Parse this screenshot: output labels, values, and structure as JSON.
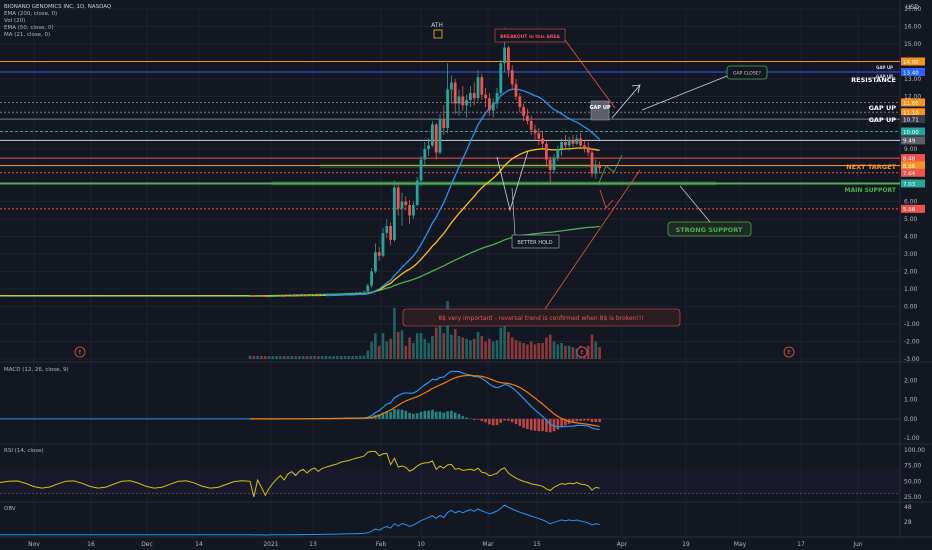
{
  "header": {
    "symbol": "BIONANO GENOMICS INC, 1D, NASDAQ",
    "currency": "USD",
    "indicators": [
      "EMA (200, close, 0)",
      "Vol (20)",
      "EMA (50, close, 0)",
      "MA (21, close, 0)"
    ]
  },
  "panes": {
    "macd_label": "MACD (12, 26, close, 9)",
    "rsi_label": "RSI (14, close)",
    "obv_label": "OBV"
  },
  "annotations": {
    "ath": "ATH",
    "breakout": "BREAKOUT in this AREA",
    "gap_close": "GAP CLOSE?",
    "gap_up_box": "GAP UP",
    "resistance": "RESISTANCE",
    "gap_up_1": "GAP UP",
    "gap_up_2": "GAP UP",
    "next_target": "NEXT TARGET",
    "main_support": "MAIN SUPPORT",
    "strong_support": "STRONG SUPPORT",
    "better_hold": "BETTER HOLD",
    "note": "8$ very important - reversal trend is confirmed when 8$ is broken!!!",
    "gap_up_small_1": "GAP UP",
    "gap_up_small_2": "GAP UP",
    "earnings": "E"
  },
  "price_tags": [
    {
      "label": "14.00",
      "value": 14.0,
      "color": "#f7931a"
    },
    {
      "label": "13.40",
      "value": 13.4,
      "color": "#2962ff"
    },
    {
      "label": "11.66",
      "value": 11.66,
      "color": "#f7931a"
    },
    {
      "label": "11.10",
      "value": 11.1,
      "color": "#f7931a"
    },
    {
      "label": "10.71",
      "value": 10.71,
      "color": "#363a45"
    },
    {
      "label": "10.00",
      "value": 10.0,
      "color": "#26a69a"
    },
    {
      "label": "9.49",
      "value": 9.49,
      "color": "#5d606b"
    },
    {
      "label": "8.48",
      "value": 8.48,
      "color": "#ef5350"
    },
    {
      "label": "8.06",
      "value": 8.06,
      "color": "#f7931a"
    },
    {
      "label": "7.64",
      "value": 7.64,
      "color": "#ef5350"
    },
    {
      "label": "7.03",
      "value": 7.03,
      "color": "#26a69a"
    },
    {
      "label": "5.58",
      "value": 5.58,
      "color": "#ef5350"
    }
  ],
  "chart_data": [
    {
      "type": "candlestick",
      "title": "BIONANO GENOMICS INC, 1D, NASDAQ",
      "ylim": [
        -3,
        17
      ],
      "yticks": [
        17,
        16,
        15,
        14,
        13,
        12,
        11,
        10,
        9,
        8,
        7,
        6,
        5,
        4,
        3,
        2,
        1,
        0,
        -1,
        -2,
        -3
      ],
      "ytick_labels": [
        "17.00",
        "16.00",
        "15.00",
        "14.00",
        "13.00",
        "12.00",
        "11.00",
        "10.00",
        "9.00",
        "8.00",
        "7.00",
        "6.00",
        "5.00",
        "4.00",
        "3.00",
        "2.00",
        "1.00",
        "0.00",
        "-1.00",
        "-2.00",
        "-3.00"
      ],
      "x_labels": [
        "Nov",
        "16",
        "Dec",
        "14",
        "2021",
        "13",
        "Feb",
        "10",
        "Mar",
        "15",
        "Apr",
        "19",
        "May",
        "17",
        "Jun"
      ],
      "ohlc": [
        [
          0.6,
          0.65,
          0.55,
          0.6
        ],
        [
          0.6,
          0.62,
          0.55,
          0.58
        ],
        [
          0.58,
          0.62,
          0.55,
          0.6
        ],
        [
          0.6,
          0.63,
          0.56,
          0.59
        ],
        [
          0.59,
          0.62,
          0.55,
          0.57
        ],
        [
          0.57,
          0.6,
          0.54,
          0.58
        ],
        [
          0.58,
          0.61,
          0.55,
          0.59
        ],
        [
          0.59,
          0.62,
          0.56,
          0.6
        ],
        [
          0.6,
          0.64,
          0.57,
          0.61
        ],
        [
          0.61,
          0.64,
          0.58,
          0.6
        ],
        [
          0.6,
          0.63,
          0.57,
          0.62
        ],
        [
          0.62,
          0.66,
          0.59,
          0.63
        ],
        [
          0.63,
          0.66,
          0.6,
          0.62
        ],
        [
          0.62,
          0.65,
          0.59,
          0.64
        ],
        [
          0.64,
          0.68,
          0.61,
          0.65
        ],
        [
          0.65,
          0.68,
          0.62,
          0.64
        ],
        [
          0.64,
          0.67,
          0.61,
          0.66
        ],
        [
          0.66,
          0.7,
          0.63,
          0.67
        ],
        [
          0.67,
          0.7,
          0.64,
          0.66
        ],
        [
          0.66,
          0.69,
          0.63,
          0.68
        ],
        [
          0.68,
          0.72,
          0.65,
          0.69
        ],
        [
          0.69,
          0.72,
          0.66,
          0.7
        ],
        [
          0.7,
          0.73,
          0.67,
          0.71
        ],
        [
          0.71,
          0.75,
          0.68,
          0.72
        ],
        [
          0.72,
          0.76,
          0.69,
          0.74
        ],
        [
          0.74,
          0.78,
          0.71,
          0.75
        ],
        [
          0.75,
          0.79,
          0.72,
          0.76
        ],
        [
          0.76,
          0.8,
          0.73,
          0.78
        ],
        [
          0.78,
          0.82,
          0.75,
          0.8
        ],
        [
          0.8,
          0.85,
          0.77,
          0.82
        ],
        [
          0.82,
          0.9,
          0.8,
          0.85
        ],
        [
          0.85,
          1.3,
          0.84,
          1.2
        ],
        [
          1.2,
          2.2,
          1.1,
          2.0
        ],
        [
          2.0,
          3.6,
          1.9,
          3.1
        ],
        [
          3.1,
          3.4,
          2.6,
          2.9
        ],
        [
          2.9,
          4.5,
          2.8,
          4.2
        ],
        [
          4.2,
          5.0,
          3.9,
          4.6
        ],
        [
          4.6,
          4.8,
          3.5,
          3.8
        ],
        [
          3.8,
          7.2,
          3.7,
          6.8
        ],
        [
          6.8,
          7.0,
          5.2,
          5.6
        ],
        [
          5.6,
          6.5,
          4.6,
          6.0
        ],
        [
          6.0,
          6.3,
          5.5,
          5.8
        ],
        [
          5.8,
          6.1,
          4.7,
          5.2
        ],
        [
          5.2,
          6.0,
          5.0,
          5.8
        ],
        [
          5.8,
          7.4,
          5.7,
          7.2
        ],
        [
          7.2,
          8.6,
          6.9,
          8.4
        ],
        [
          8.4,
          9.4,
          8.1,
          9.0
        ],
        [
          9.0,
          9.6,
          8.6,
          9.2
        ],
        [
          9.2,
          10.6,
          9.1,
          10.4
        ],
        [
          10.4,
          10.5,
          8.4,
          8.8
        ],
        [
          8.8,
          11.0,
          8.7,
          10.7
        ],
        [
          10.7,
          11.5,
          9.8,
          10.2
        ],
        [
          10.2,
          13.9,
          9.9,
          12.4
        ],
        [
          12.4,
          13.2,
          11.6,
          12.8
        ],
        [
          12.8,
          13.0,
          11.0,
          11.6
        ],
        [
          11.6,
          12.4,
          10.9,
          12.0
        ],
        [
          12.0,
          12.6,
          11.2,
          11.5
        ],
        [
          11.5,
          12.1,
          10.8,
          11.8
        ],
        [
          11.8,
          12.6,
          11.4,
          12.2
        ],
        [
          12.2,
          12.8,
          11.5,
          11.9
        ],
        [
          11.9,
          13.5,
          11.7,
          13.1
        ],
        [
          13.1,
          13.3,
          11.8,
          12.1
        ],
        [
          12.1,
          12.5,
          11.4,
          11.9
        ],
        [
          11.9,
          12.2,
          10.9,
          11.2
        ],
        [
          11.2,
          11.9,
          10.8,
          11.6
        ],
        [
          11.6,
          12.5,
          11.3,
          12.2
        ],
        [
          12.2,
          14.1,
          12.0,
          13.9
        ],
        [
          13.9,
          15.9,
          13.4,
          14.8
        ],
        [
          14.8,
          14.9,
          13.1,
          13.5
        ],
        [
          13.5,
          13.8,
          12.4,
          12.7
        ],
        [
          12.7,
          13.0,
          11.8,
          12.0
        ],
        [
          12.0,
          12.2,
          11.1,
          11.4
        ],
        [
          11.4,
          11.6,
          10.6,
          10.9
        ],
        [
          10.9,
          11.3,
          10.4,
          10.6
        ],
        [
          10.6,
          10.9,
          9.8,
          10.1
        ],
        [
          10.1,
          10.4,
          9.5,
          9.9
        ],
        [
          9.9,
          10.2,
          9.2,
          9.6
        ],
        [
          9.6,
          10.0,
          9.0,
          9.3
        ],
        [
          9.3,
          9.5,
          8.1,
          8.4
        ],
        [
          8.4,
          8.6,
          7.0,
          7.8
        ],
        [
          7.8,
          8.7,
          7.6,
          8.5
        ],
        [
          8.5,
          9.2,
          8.3,
          9.0
        ],
        [
          9.0,
          9.6,
          8.6,
          9.4
        ],
        [
          9.4,
          9.8,
          9.0,
          9.2
        ],
        [
          9.2,
          9.7,
          8.9,
          9.5
        ],
        [
          9.5,
          9.8,
          9.1,
          9.3
        ],
        [
          9.3,
          9.8,
          9.2,
          9.6
        ],
        [
          9.6,
          9.9,
          9.1,
          9.2
        ],
        [
          9.2,
          9.5,
          8.8,
          9.1
        ],
        [
          9.1,
          9.4,
          8.6,
          8.8
        ],
        [
          8.8,
          9.0,
          7.4,
          7.6
        ],
        [
          7.6,
          8.4,
          7.3,
          8.1
        ],
        [
          8.1,
          8.3,
          7.6,
          7.9
        ]
      ],
      "series": [
        {
          "name": "EMA (200, close, 0)",
          "color": "#4caf50",
          "values": [
            0.6,
            0.6,
            0.61,
            0.61,
            0.62,
            0.62,
            0.63,
            0.63,
            0.64,
            0.64,
            0.65,
            0.65,
            0.66,
            0.66,
            0.67,
            0.67,
            0.68,
            0.68,
            0.69,
            0.69,
            0.7,
            0.7,
            0.71,
            0.71,
            0.72,
            0.72,
            0.73,
            0.73,
            0.74,
            0.74,
            0.75,
            0.78,
            0.82,
            0.88,
            0.92,
            0.98,
            1.05,
            1.1,
            1.2,
            1.28,
            1.35,
            1.42,
            1.48,
            1.55,
            1.63,
            1.72,
            1.82,
            1.92,
            2.03,
            2.12,
            2.22,
            2.32,
            2.44,
            2.55,
            2.65,
            2.75,
            2.85,
            2.95,
            3.05,
            3.14,
            3.24,
            3.32,
            3.4,
            3.47,
            3.54,
            3.62,
            3.71,
            3.81,
            3.88,
            3.94,
            3.99,
            4.03,
            4.07,
            4.1,
            4.13,
            4.16,
            4.18,
            4.21,
            4.23,
            4.24,
            4.26,
            4.29,
            4.32,
            4.35,
            4.38,
            4.41,
            4.44,
            4.47,
            4.5,
            4.52,
            4.53,
            4.55,
            4.57
          ]
        },
        {
          "name": "EMA (50, close, 0)",
          "color": "#ffc107",
          "values": [
            0.6,
            0.6,
            0.6,
            0.6,
            0.6,
            0.6,
            0.6,
            0.6,
            0.6,
            0.6,
            0.61,
            0.61,
            0.61,
            0.62,
            0.62,
            0.62,
            0.63,
            0.63,
            0.63,
            0.64,
            0.64,
            0.65,
            0.65,
            0.66,
            0.66,
            0.67,
            0.67,
            0.68,
            0.69,
            0.7,
            0.71,
            0.73,
            0.78,
            0.87,
            0.95,
            1.08,
            1.22,
            1.32,
            1.53,
            1.69,
            1.86,
            2.01,
            2.13,
            2.28,
            2.47,
            2.7,
            2.94,
            3.18,
            3.45,
            3.66,
            3.93,
            4.17,
            4.48,
            4.79,
            5.05,
            5.32,
            5.56,
            5.81,
            6.06,
            6.29,
            6.56,
            6.78,
            6.98,
            7.15,
            7.33,
            7.53,
            7.78,
            8.05,
            8.26,
            8.44,
            8.57,
            8.69,
            8.79,
            8.87,
            8.92,
            8.96,
            8.99,
            9.01,
            9.0,
            8.96,
            8.95,
            8.96,
            8.98,
            9.0,
            9.02,
            9.03,
            9.05,
            9.06,
            9.06,
            9.05,
            8.99,
            8.96,
            8.92
          ]
        },
        {
          "name": "MA (21, close, 0)",
          "color": "#2196f3",
          "values": [
            null,
            null,
            null,
            null,
            null,
            null,
            null,
            null,
            null,
            null,
            null,
            null,
            null,
            null,
            null,
            null,
            null,
            null,
            null,
            null,
            0.62,
            0.63,
            0.64,
            0.64,
            0.65,
            0.66,
            0.66,
            0.67,
            0.68,
            0.69,
            0.7,
            0.73,
            0.79,
            0.9,
            1.0,
            1.17,
            1.35,
            1.49,
            1.78,
            1.99,
            2.23,
            2.45,
            2.66,
            2.89,
            3.19,
            3.54,
            3.93,
            4.33,
            4.77,
            5.1,
            5.53,
            5.93,
            6.44,
            6.99,
            7.48,
            7.96,
            8.44,
            8.92,
            9.43,
            9.89,
            10.39,
            10.72,
            11.06,
            11.31,
            11.52,
            11.73,
            12.06,
            12.2,
            12.35,
            12.41,
            12.42,
            12.39,
            12.32,
            12.24,
            12.15,
            12.04,
            11.97,
            11.83,
            11.65,
            11.43,
            11.26,
            11.14,
            11.01,
            10.86,
            10.74,
            10.62,
            10.53,
            10.4,
            10.25,
            10.12,
            9.94,
            9.74,
            9.55
          ]
        }
      ],
      "volume_scale_note": "",
      "levels": [
        14.0,
        13.4,
        11.66,
        11.1,
        10.71,
        10.0,
        9.49,
        8.48,
        8.06,
        7.64,
        7.03,
        5.58
      ]
    },
    {
      "type": "line",
      "title": "MACD (12, 26, close, 9)",
      "ylim": [
        -1.2,
        2.8
      ],
      "yticks": [
        2.0,
        1.0,
        0.0,
        -1.0
      ],
      "ytick_labels": [
        "2.00",
        "1.00",
        "0.00",
        "-1.00"
      ]
    },
    {
      "type": "line",
      "title": "RSI (14, close)",
      "ylim": [
        20,
        105
      ],
      "yticks": [
        100,
        75,
        50,
        25
      ],
      "ytick_labels": [
        "100.00",
        "75.00",
        "50.00",
        "25.00"
      ]
    },
    {
      "type": "line",
      "title": "OBV",
      "ytick_labels": [
        "48",
        "28"
      ]
    }
  ]
}
